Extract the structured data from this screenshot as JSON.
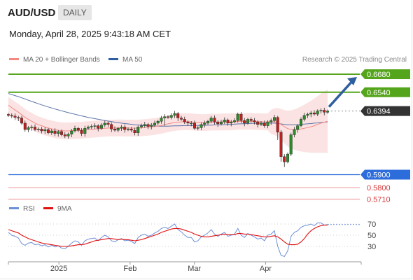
{
  "header": {
    "symbol": "AUD/USD",
    "timeframe": "DAILY",
    "datetime": "Monday, April 28, 2025 9:43:18 AM CET"
  },
  "legend": {
    "items": [
      {
        "label": "MA 20 + Bollinger Bands",
        "color": "#f28a84"
      },
      {
        "label": "MA 50",
        "color": "#2f5f9e"
      }
    ],
    "credit": "Research © 2025 Trading Central"
  },
  "colors": {
    "bull": "#2a8c2a",
    "bear": "#bf1f1f",
    "band_fill": "#fbe0e0",
    "ma20": "#f28a84",
    "ma50": "#5b73a8",
    "resistance": "#55a51c",
    "support_primary": "#2c6cdb",
    "support_secondary": "#f0a6a6",
    "arrow": "#2f5f9e",
    "current_price_bg": "#333333",
    "rsi": "#6d8fd8",
    "rsi_ma": "#e01010"
  },
  "levels": [
    {
      "label": "0.6680",
      "value": 0.668,
      "kind": "resistance"
    },
    {
      "label": "0.6540",
      "value": 0.654,
      "kind": "resistance"
    },
    {
      "label": "0.6394",
      "value": 0.6394,
      "kind": "current"
    },
    {
      "label": "0.5900",
      "value": 0.59,
      "kind": "support_primary"
    },
    {
      "label": "0.5800",
      "value": 0.58,
      "kind": "support_secondary"
    },
    {
      "label": "0.5710",
      "value": 0.571,
      "kind": "support_secondary"
    }
  ],
  "rsi_legend": [
    {
      "label": "RSI",
      "color": "#6d8fd8"
    },
    {
      "label": "9MA",
      "color": "#e01010"
    }
  ],
  "x_axis_labels": [
    {
      "label": "2025",
      "date": "2025-01-01"
    },
    {
      "label": "Feb",
      "date": "2025-02-01"
    },
    {
      "label": "Mar",
      "date": "2025-03-01"
    },
    {
      "label": "Apr",
      "date": "2025-04-01"
    }
  ],
  "chart_data": [
    {
      "type": "candlestick",
      "title": "AUD/USD",
      "start_date": "2024-12-10",
      "end_date": "2025-04-28",
      "ylim": [
        0.568,
        0.674
      ],
      "candle_closes": [
        0.636,
        0.6355,
        0.6345,
        0.634,
        0.63,
        0.625,
        0.6265,
        0.627,
        0.625,
        0.6255,
        0.624,
        0.625,
        0.6225,
        0.624,
        0.622,
        0.6235,
        0.621,
        0.62,
        0.6215,
        0.624,
        0.626,
        0.6245,
        0.622,
        0.626,
        0.627,
        0.6275,
        0.628,
        0.626,
        0.6285,
        0.63,
        0.629,
        0.6255,
        0.6245,
        0.626,
        0.627,
        0.625,
        0.6255,
        0.6245,
        0.6225,
        0.627,
        0.628,
        0.629,
        0.6275,
        0.6285,
        0.63,
        0.6315,
        0.634,
        0.635,
        0.6345,
        0.636,
        0.6375,
        0.634,
        0.633,
        0.631,
        0.63,
        0.63,
        0.626,
        0.6265,
        0.629,
        0.63,
        0.6315,
        0.634,
        0.631,
        0.6295,
        0.631,
        0.6325,
        0.63,
        0.631,
        0.632,
        0.637,
        0.632,
        0.63,
        0.633,
        0.632,
        0.631,
        0.629,
        0.63,
        0.628,
        0.631,
        0.632,
        0.6345,
        0.623,
        0.604,
        0.6,
        0.606,
        0.621,
        0.625,
        0.628,
        0.633,
        0.636,
        0.637,
        0.638,
        0.637,
        0.6395,
        0.64,
        0.6385,
        0.6394
      ],
      "ma20_values": [
        0.644,
        0.642,
        0.6402,
        0.6385,
        0.6365,
        0.6345,
        0.633,
        0.6315,
        0.63,
        0.6288,
        0.628,
        0.627,
        0.6262,
        0.6256,
        0.625,
        0.6245,
        0.6242,
        0.624,
        0.624,
        0.6241,
        0.6243,
        0.6244,
        0.6245,
        0.6248,
        0.625,
        0.6252,
        0.6254,
        0.6256,
        0.6258,
        0.626,
        0.6262,
        0.6262,
        0.6262,
        0.6263,
        0.6263,
        0.6262,
        0.6262,
        0.6262,
        0.6261,
        0.6262,
        0.6264,
        0.6266,
        0.6268,
        0.6271,
        0.6274,
        0.6278,
        0.6283,
        0.6289,
        0.6295,
        0.63,
        0.6305,
        0.6308,
        0.631,
        0.6311,
        0.6311,
        0.631,
        0.6308,
        0.6306,
        0.6305,
        0.6305,
        0.6306,
        0.6308,
        0.6308,
        0.6308,
        0.6309,
        0.631,
        0.631,
        0.631,
        0.6311,
        0.6314,
        0.6314,
        0.6313,
        0.6314,
        0.6314,
        0.6313,
        0.6312,
        0.6311,
        0.631,
        0.631,
        0.631,
        0.6312,
        0.6306,
        0.629,
        0.6272,
        0.6258,
        0.6252,
        0.625,
        0.6251,
        0.6255,
        0.626,
        0.6266,
        0.6272,
        0.628,
        0.629,
        0.63,
        0.6308,
        0.6315
      ],
      "ma50_values": [
        0.653,
        0.6522,
        0.6514,
        0.6506,
        0.6497,
        0.6488,
        0.6478,
        0.6469,
        0.646,
        0.6451,
        0.6442,
        0.6434,
        0.6426,
        0.6418,
        0.641,
        0.6403,
        0.6396,
        0.6389,
        0.6382,
        0.6375,
        0.6369,
        0.6363,
        0.6357,
        0.6351,
        0.6345,
        0.634,
        0.6335,
        0.633,
        0.6325,
        0.632,
        0.6316,
        0.6312,
        0.6308,
        0.6304,
        0.63,
        0.6297,
        0.6294,
        0.6291,
        0.6288,
        0.6286,
        0.6284,
        0.6282,
        0.628,
        0.6279,
        0.6278,
        0.6277,
        0.6277,
        0.6277,
        0.6277,
        0.6278,
        0.6279,
        0.6279,
        0.628,
        0.6281,
        0.6281,
        0.6281,
        0.6281,
        0.6282,
        0.6282,
        0.6283,
        0.6284,
        0.6285,
        0.6286,
        0.6287,
        0.6288,
        0.6289,
        0.629,
        0.6291,
        0.6292,
        0.6294,
        0.6295,
        0.6296,
        0.6297,
        0.6298,
        0.6299,
        0.63,
        0.63,
        0.63,
        0.63,
        0.63,
        0.63,
        0.6298,
        0.6294,
        0.629,
        0.6287,
        0.6287,
        0.6288,
        0.6289,
        0.6291,
        0.6293,
        0.6295,
        0.6297,
        0.63,
        0.6302,
        0.6305,
        0.6308,
        0.631
      ]
    },
    {
      "type": "line",
      "title": "RSI",
      "series": [
        {
          "name": "RSI",
          "values": [
            55,
            50,
            48,
            45,
            35,
            32,
            36,
            37,
            33,
            34,
            31,
            33,
            29,
            32,
            29,
            31,
            27,
            26,
            30,
            36,
            40,
            38,
            32,
            40,
            43,
            44,
            45,
            40,
            46,
            50,
            47,
            40,
            38,
            42,
            44,
            40,
            41,
            39,
            35,
            46,
            50,
            52,
            48,
            50,
            54,
            57,
            62,
            64,
            62,
            66,
            70,
            60,
            56,
            50,
            46,
            46,
            38,
            40,
            47,
            50,
            54,
            60,
            52,
            48,
            52,
            55,
            48,
            50,
            52,
            62,
            50,
            46,
            53,
            50,
            47,
            43,
            45,
            40,
            50,
            52,
            58,
            30,
            14,
            12,
            22,
            48,
            55,
            58,
            64,
            67,
            68,
            70,
            67,
            72,
            72,
            68,
            69
          ]
        },
        {
          "name": "9MA",
          "values": [
            60,
            58,
            56,
            54,
            50,
            47,
            44,
            42,
            40,
            38,
            36,
            35,
            34,
            33,
            32,
            31,
            30,
            30,
            30,
            31,
            32,
            33,
            33,
            34,
            36,
            38,
            40,
            41,
            42,
            43,
            44,
            44,
            43,
            42,
            43,
            42,
            42,
            41,
            40,
            41,
            42,
            44,
            46,
            48,
            50,
            52,
            55,
            57,
            59,
            61,
            62,
            62,
            61,
            59,
            57,
            55,
            52,
            50,
            48,
            47,
            47,
            48,
            49,
            50,
            51,
            52,
            51,
            51,
            51,
            53,
            53,
            52,
            52,
            51,
            50,
            49,
            48,
            47,
            47,
            48,
            49,
            47,
            43,
            38,
            34,
            33,
            33,
            34,
            38,
            44,
            52,
            58,
            62,
            65,
            67,
            68,
            68
          ]
        }
      ],
      "ylim": [
        10,
        80
      ],
      "y_ticks": [
        30,
        50,
        70
      ]
    }
  ]
}
